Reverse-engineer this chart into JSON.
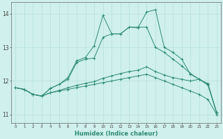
{
  "xlabel": "Humidex (Indice chaleur)",
  "x_values": [
    0,
    1,
    2,
    3,
    4,
    5,
    6,
    7,
    8,
    9,
    10,
    11,
    12,
    13,
    14,
    15,
    16,
    17,
    18,
    19,
    20,
    21,
    22,
    23
  ],
  "line1": [
    11.8,
    11.75,
    11.6,
    11.55,
    11.65,
    11.7,
    11.75,
    11.8,
    11.85,
    11.9,
    11.95,
    12.0,
    12.05,
    12.1,
    12.15,
    12.2,
    12.1,
    12.0,
    11.9,
    11.8,
    11.7,
    11.6,
    11.45,
    11.0
  ],
  "line2": [
    11.8,
    11.75,
    11.6,
    11.55,
    11.65,
    11.72,
    11.8,
    11.87,
    11.93,
    11.98,
    12.08,
    12.15,
    12.22,
    12.28,
    12.32,
    12.42,
    12.28,
    12.18,
    12.1,
    12.05,
    12.0,
    12.05,
    11.92,
    11.05
  ],
  "line3": [
    11.8,
    11.75,
    11.6,
    11.55,
    11.78,
    11.9,
    12.05,
    12.55,
    12.65,
    12.68,
    13.3,
    13.4,
    13.4,
    13.6,
    13.6,
    13.6,
    13.0,
    12.85,
    12.65,
    12.45,
    12.22,
    12.05,
    11.88,
    11.05
  ],
  "line4": [
    11.8,
    11.75,
    11.6,
    11.55,
    11.78,
    11.9,
    12.1,
    12.6,
    12.7,
    13.05,
    13.95,
    13.4,
    13.4,
    13.6,
    13.58,
    14.05,
    14.12,
    13.0,
    12.85,
    12.65,
    12.2,
    12.05,
    11.9,
    11.05
  ],
  "color": "#2e8b73",
  "bg_color": "#cff0ec",
  "grid_color": "#b0ddd5",
  "ylim": [
    10.75,
    14.35
  ],
  "xlim": [
    -0.5,
    23.5
  ],
  "yticks": [
    11,
    12,
    13,
    14
  ],
  "figsize": [
    3.2,
    2.0
  ],
  "dpi": 100
}
